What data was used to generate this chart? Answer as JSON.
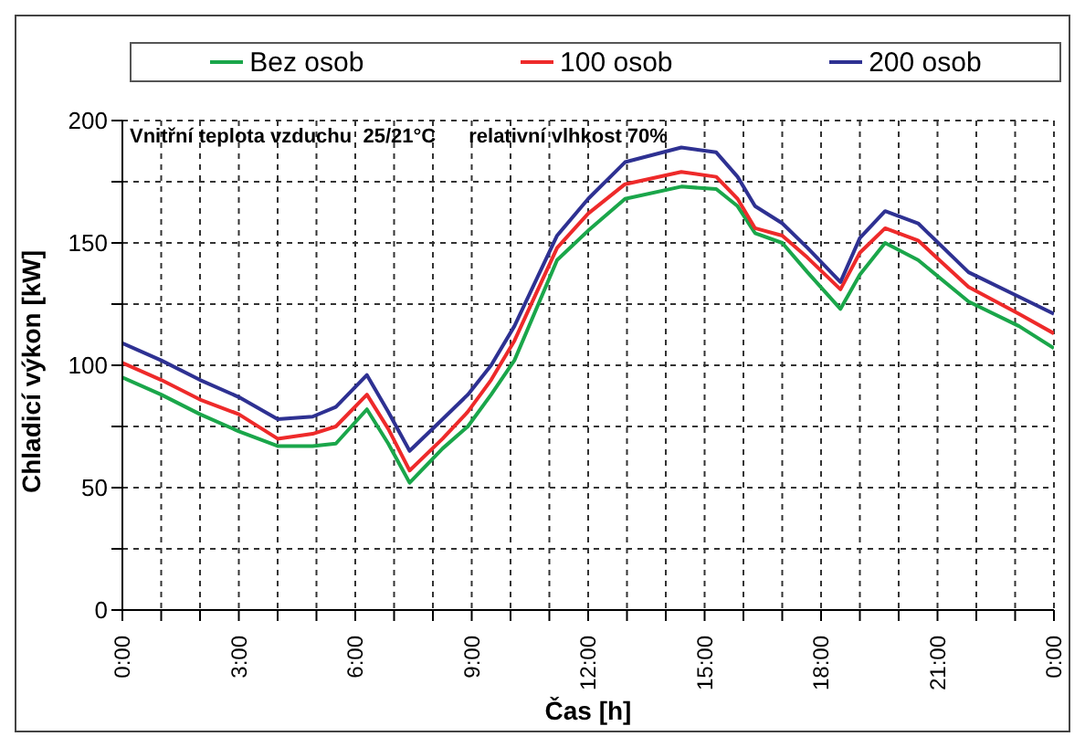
{
  "chart_data": {
    "type": "line",
    "xlabel": "Čas [h]",
    "ylabel": "Chladicí výkon [kW]",
    "annotations": [
      "Vnitřní teplota vzduchu  25/21°C",
      "relativní vlhkost 70%"
    ],
    "x": [
      0,
      1,
      2,
      3,
      4,
      4.9,
      5.5,
      6.3,
      6.85,
      7.4,
      8.25,
      8.9,
      9.5,
      10.1,
      11.2,
      12,
      12.95,
      14.4,
      15.3,
      15.85,
      16.3,
      17,
      17.65,
      18.5,
      19,
      19.65,
      20.5,
      21.8,
      23.1,
      24
    ],
    "series": [
      {
        "name": "Bez osob",
        "color": "#1aa64a",
        "values": [
          95,
          88,
          80,
          73,
          67,
          67,
          68,
          82,
          68,
          52,
          66,
          75,
          88,
          102,
          143,
          155,
          168,
          173,
          172,
          165,
          154,
          150,
          138,
          123,
          137,
          150,
          143,
          126,
          116,
          107
        ]
      },
      {
        "name": "100 osob",
        "color": "#ee2a2a",
        "values": [
          101,
          94,
          86,
          80,
          70,
          72,
          75,
          88,
          74,
          57,
          70,
          81,
          94,
          110,
          148,
          162,
          174,
          179,
          177,
          168,
          156,
          153,
          144,
          131,
          146,
          156,
          151,
          132,
          121,
          113
        ]
      },
      {
        "name": "200 osob",
        "color": "#2e3192",
        "values": [
          109,
          102,
          94,
          87,
          78,
          79,
          83,
          96,
          81,
          65,
          78,
          88,
          100,
          116,
          153,
          168,
          183,
          189,
          187,
          177,
          165,
          158,
          148,
          134,
          152,
          163,
          158,
          138,
          128,
          121
        ]
      }
    ],
    "xlim": [
      0,
      24
    ],
    "xticks": [
      {
        "value": 0,
        "label": "0:00"
      },
      {
        "value": 1,
        "label": null
      },
      {
        "value": 2,
        "label": null
      },
      {
        "value": 3,
        "label": "3:00"
      },
      {
        "value": 4,
        "label": null
      },
      {
        "value": 5,
        "label": null
      },
      {
        "value": 6,
        "label": "6:00"
      },
      {
        "value": 7,
        "label": null
      },
      {
        "value": 8,
        "label": null
      },
      {
        "value": 9,
        "label": "9:00"
      },
      {
        "value": 10,
        "label": null
      },
      {
        "value": 11,
        "label": null
      },
      {
        "value": 12,
        "label": "12:00"
      },
      {
        "value": 13,
        "label": null
      },
      {
        "value": 14,
        "label": null
      },
      {
        "value": 15,
        "label": "15:00"
      },
      {
        "value": 16,
        "label": null
      },
      {
        "value": 17,
        "label": null
      },
      {
        "value": 18,
        "label": "18:00"
      },
      {
        "value": 19,
        "label": null
      },
      {
        "value": 20,
        "label": null
      },
      {
        "value": 21,
        "label": "21:00"
      },
      {
        "value": 22,
        "label": null
      },
      {
        "value": 23,
        "label": null
      },
      {
        "value": 24,
        "label": "0:00"
      }
    ],
    "ylim": [
      0,
      200
    ],
    "yticks": [
      0,
      {
        "value": 25,
        "label": null
      },
      50,
      {
        "value": 75,
        "label": null
      },
      100,
      {
        "value": 125,
        "label": null
      },
      150,
      {
        "value": 175,
        "label": null
      },
      200
    ],
    "grid": true,
    "legend": "top",
    "marker": "none",
    "line_style": "solid"
  }
}
